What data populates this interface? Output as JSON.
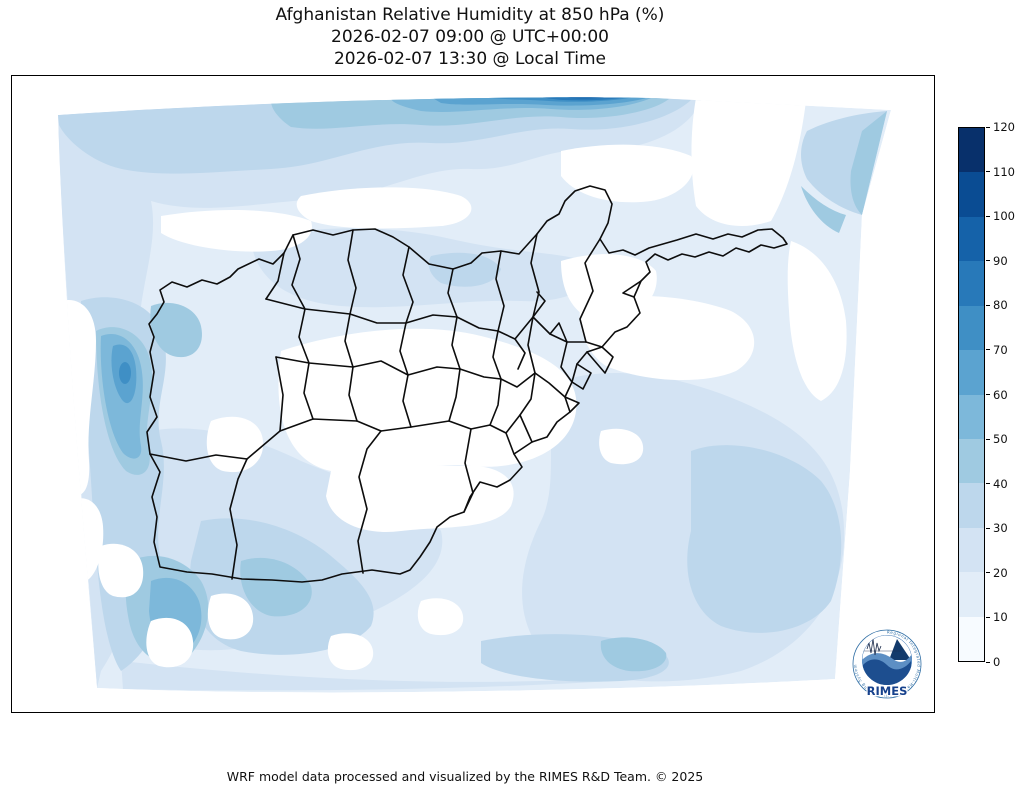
{
  "header": {
    "title": "Afghanistan Relative Humidity at 850 hPa (%)",
    "utc_line": "2026-02-07 09:00 @ UTC+00:00",
    "local_line": "2026-02-07 13:30 @ Local Time"
  },
  "footer": {
    "text": "WRF model data processed and visualized by the RIMES R&D Team. © 2025"
  },
  "logo": {
    "name": "RIMES",
    "ring_text": "Regional Integrated Multi-Hazard Early Warning System",
    "accent_color": "#1b4f9c"
  },
  "colorbar": {
    "min": 0,
    "max": 120,
    "step": 10,
    "tick_labels": [
      "0",
      "10",
      "20",
      "30",
      "40",
      "50",
      "60",
      "70",
      "80",
      "90",
      "100",
      "110",
      "120"
    ],
    "segment_colors_low_to_high": [
      "#f7fbff",
      "#e2edf8",
      "#d3e3f3",
      "#bdd7ec",
      "#9fcae1",
      "#7db8da",
      "#5ba3d0",
      "#3f8fc5",
      "#2879b9",
      "#1562a9",
      "#0a4c93",
      "#08306b"
    ],
    "outline_color": "#000000"
  },
  "map": {
    "region": "Afghanistan",
    "boundary_color": "#000000",
    "background_color": "#ffffff",
    "fill_palette_name": "Blues"
  },
  "chart_data": {
    "type": "heatmap",
    "subtype": "filled-contour-map",
    "title": "Afghanistan Relative Humidity at 850 hPa (%)",
    "valid_time_utc": "2026-02-07 09:00 @ UTC+00:00",
    "valid_time_local": "2026-02-07 13:30 @ Local Time",
    "variable": "Relative Humidity",
    "pressure_level": "850 hPa",
    "units": "%",
    "region": "Afghanistan and surroundings",
    "colormap": "Blues",
    "levels": [
      0,
      10,
      20,
      30,
      40,
      50,
      60,
      70,
      80,
      90,
      100,
      110,
      120
    ],
    "colorbar_position": "right",
    "colorbar_orientation": "vertical",
    "overlays": [
      "Afghanistan province boundaries (black)"
    ],
    "value_summary": {
      "country_interior": "0-10",
      "northern_plains_band": "20-40",
      "northern_domain_edge_peak": "90-110",
      "western_iran_border_band": "40-60",
      "southwest_band": "30-50",
      "eastern_pakistan_region": "20-40",
      "top_right_corner_patch": "30-50"
    }
  }
}
